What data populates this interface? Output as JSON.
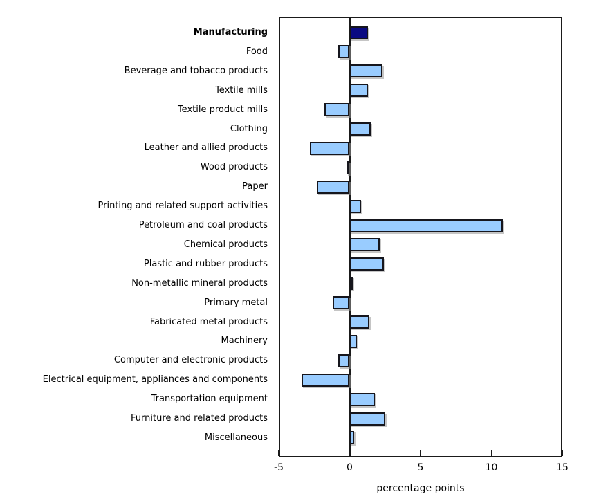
{
  "chart_data": {
    "type": "bar",
    "orientation": "horizontal",
    "title": "",
    "xlabel": "percentage points",
    "ylabel": "",
    "xlim": [
      -5,
      15
    ],
    "xticks": [
      -5,
      0,
      5,
      10,
      15
    ],
    "grid": false,
    "legend": "none",
    "emphasis_index": 0,
    "categories": [
      "Manufacturing",
      "Food",
      "Beverage and tobacco products",
      "Textile mills",
      "Textile product mills",
      "Clothing",
      "Leather and allied products",
      "Wood products",
      "Paper",
      "Printing and related support activities",
      "Petroleum and coal products",
      "Chemical products",
      "Plastic and rubber products",
      "Non-metallic mineral products",
      "Primary metal",
      "Fabricated metal products",
      "Machinery",
      "Computer and electronic products",
      "Electrical equipment, appliances and components",
      "Transportation equipment",
      "Furniture and related products",
      "Miscellaneous"
    ],
    "values": [
      1.3,
      -0.8,
      2.3,
      1.3,
      -1.8,
      1.5,
      -2.8,
      -0.2,
      -2.3,
      0.8,
      10.8,
      2.1,
      2.4,
      0.1,
      -1.2,
      1.4,
      0.5,
      -0.8,
      -3.4,
      1.8,
      2.5,
      0.3
    ],
    "colors": {
      "bar_fill": "#99CCFF",
      "bar_emphasis_fill": "#0a0a82",
      "bar_border": "#16161d",
      "axis": "#1a1a1a",
      "text": "#000000",
      "background": "#ffffff"
    }
  }
}
